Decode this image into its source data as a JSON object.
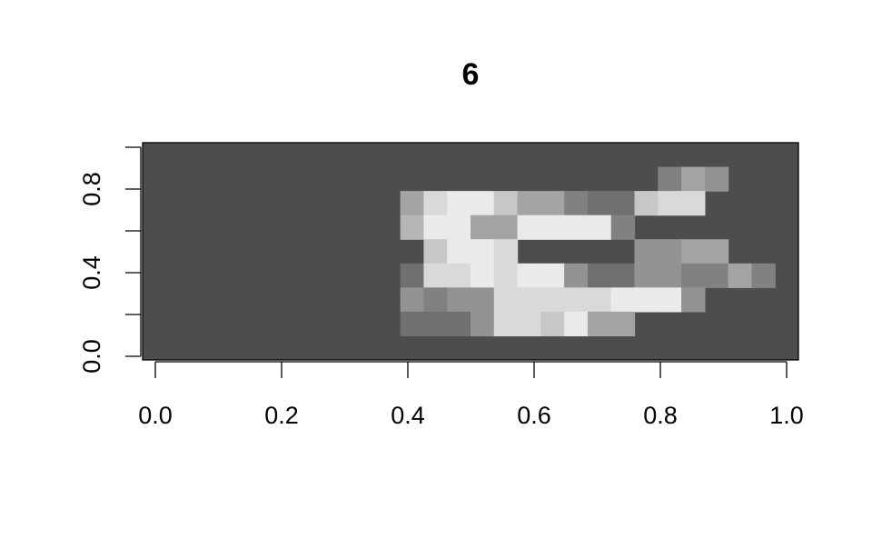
{
  "chart_data": {
    "type": "heatmap",
    "title": "6",
    "xlabel": "",
    "ylabel": "",
    "xlim": [
      0,
      1
    ],
    "ylim": [
      0,
      1
    ],
    "x_ticks": [
      "0.0",
      "0.2",
      "0.4",
      "0.6",
      "0.8",
      "1.0"
    ],
    "y_ticks": [
      "0.0",
      "0.4",
      "0.8"
    ],
    "y_minor_ticks": [
      0.2,
      0.6,
      1.0
    ],
    "grid": false,
    "colormap": "gray",
    "background_color": "#4d4d4d",
    "n_cols": 28,
    "n_rows": 9,
    "rows": [
      "............................",
      "......................354...",
      "...........5899755322788....",
      "...........6995599993.......",
      "............7998.....4455...",
      "...........2889899422443353.",
      "...........4344888889994....",
      "...........2224887955.......",
      "............................"
    ],
    "intensity_note": "9 = white stroke, 1 = faint"
  }
}
